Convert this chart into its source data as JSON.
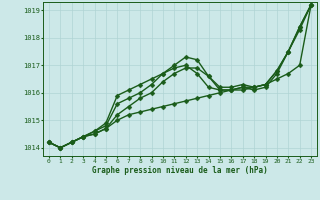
{
  "title": "Graphe pression niveau de la mer (hPa)",
  "background_color": "#cce8e8",
  "line_color": "#1a5c1a",
  "grid_color": "#b0d4d4",
  "xlim": [
    -0.5,
    23.5
  ],
  "ylim": [
    1013.7,
    1019.3
  ],
  "yticks": [
    1014,
    1015,
    1016,
    1017,
    1018,
    1019
  ],
  "xticks": [
    0,
    1,
    2,
    3,
    4,
    5,
    6,
    7,
    8,
    9,
    10,
    11,
    12,
    13,
    14,
    15,
    16,
    17,
    18,
    19,
    20,
    21,
    22,
    23
  ],
  "series": [
    [
      1014.2,
      1014.0,
      1014.2,
      1014.4,
      1014.5,
      1014.7,
      1015.0,
      1015.2,
      1015.3,
      1015.4,
      1015.5,
      1015.6,
      1015.7,
      1015.8,
      1015.9,
      1016.0,
      1016.1,
      1016.1,
      1016.2,
      1016.3,
      1016.5,
      1016.7,
      1017.0,
      1019.2
    ],
    [
      1014.2,
      1014.0,
      1014.2,
      1014.4,
      1014.5,
      1014.7,
      1015.2,
      1015.5,
      1015.8,
      1016.0,
      1016.4,
      1016.7,
      1016.9,
      1016.9,
      1016.6,
      1016.1,
      1016.1,
      1016.2,
      1016.1,
      1016.2,
      1016.7,
      1017.5,
      1018.4,
      1019.2
    ],
    [
      1014.2,
      1014.0,
      1014.2,
      1014.4,
      1014.6,
      1014.8,
      1015.6,
      1015.8,
      1016.0,
      1016.3,
      1016.7,
      1017.0,
      1017.3,
      1017.2,
      1016.6,
      1016.2,
      1016.2,
      1016.3,
      1016.2,
      1016.3,
      1016.8,
      1017.5,
      1018.4,
      1019.2
    ],
    [
      1014.2,
      1014.0,
      1014.2,
      1014.4,
      1014.6,
      1014.9,
      1015.9,
      1016.1,
      1016.3,
      1016.5,
      1016.7,
      1016.9,
      1017.0,
      1016.7,
      1016.2,
      1016.1,
      1016.1,
      1016.2,
      1016.2,
      1016.3,
      1016.8,
      1017.5,
      1018.3,
      1019.2
    ]
  ],
  "linewidths": [
    1.0,
    1.0,
    1.0,
    1.0
  ],
  "markersizes": [
    2.5,
    2.5,
    2.5,
    2.5
  ]
}
